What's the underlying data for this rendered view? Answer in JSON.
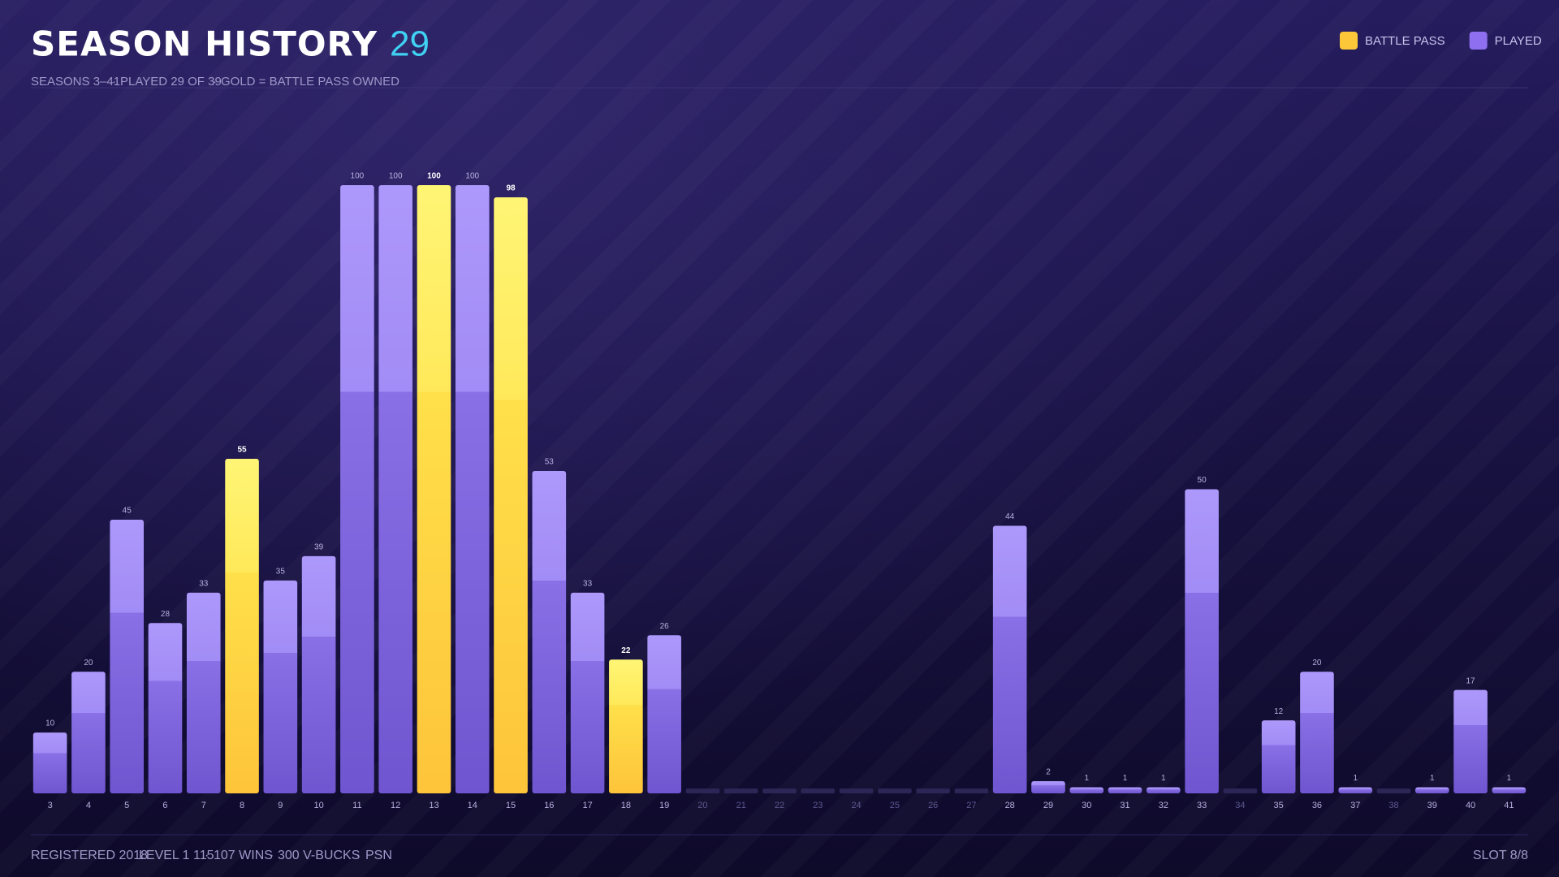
{
  "chart_data": {
    "type": "bar",
    "title": "SEASON HISTORY",
    "played_count": 29,
    "subtitle": [
      "SEASONS 3–41",
      "PLAYED 29 OF 39",
      "GOLD = BATTLE PASS OWNED"
    ],
    "footer": [
      "REGISTERED 2018",
      "LEVEL 1 115",
      "107 WINS",
      "300 V-BUCKS",
      "PSN"
    ],
    "slot": "SLOT 8/8",
    "legend": [
      {
        "name": "BATTLE PASS",
        "color": "#fcc83a"
      },
      {
        "name": "PLAYED",
        "color": "#8d6ff0"
      }
    ],
    "categories": [
      "3",
      "4",
      "5",
      "6",
      "7",
      "8",
      "9",
      "10",
      "11",
      "12",
      "13",
      "14",
      "15",
      "16",
      "17",
      "18",
      "19",
      "20",
      "21",
      "22",
      "23",
      "24",
      "25",
      "26",
      "27",
      "28",
      "29",
      "30",
      "31",
      "32",
      "33",
      "34",
      "35",
      "36",
      "37",
      "38",
      "39",
      "40",
      "41"
    ],
    "values": [
      10,
      20,
      45,
      28,
      33,
      55,
      35,
      39,
      100,
      100,
      100,
      100,
      98,
      53,
      33,
      22,
      26,
      null,
      null,
      null,
      null,
      null,
      null,
      null,
      null,
      44,
      2,
      1,
      1,
      1,
      50,
      null,
      12,
      20,
      1,
      null,
      1,
      17,
      1
    ],
    "battle_pass": [
      false,
      false,
      false,
      false,
      false,
      true,
      false,
      false,
      false,
      false,
      true,
      false,
      true,
      false,
      false,
      true,
      false,
      false,
      false,
      false,
      false,
      false,
      false,
      false,
      false,
      false,
      false,
      false,
      false,
      false,
      false,
      false,
      false,
      false,
      false,
      false,
      false,
      false,
      false
    ],
    "ylim": [
      0,
      100
    ]
  }
}
